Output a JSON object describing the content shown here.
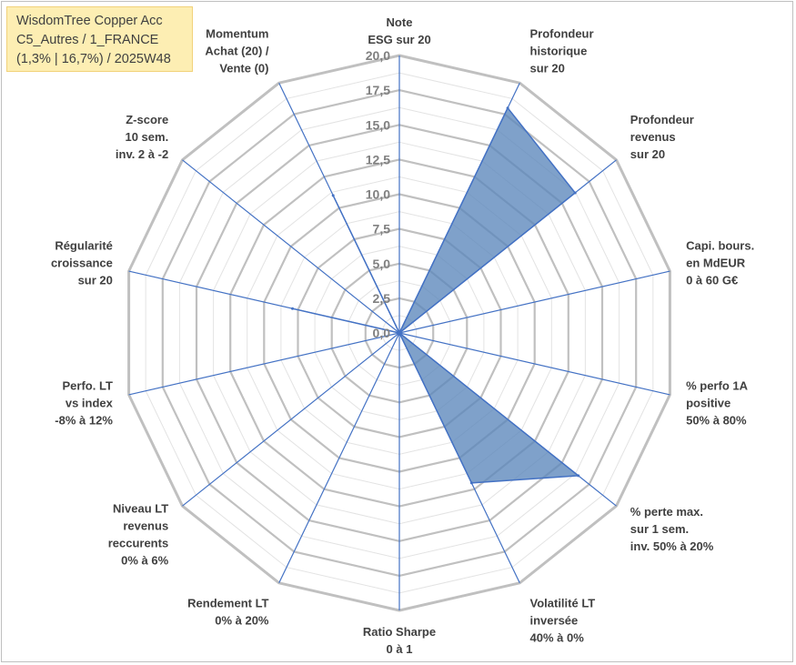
{
  "title_box": {
    "line1": "WisdomTree Copper Acc",
    "line2": "C5_Autres / 1_FRANCE",
    "line3": "(1,3% | 16,7%) / 2025W48"
  },
  "colors": {
    "series_fill": "#5b87bb",
    "series_stroke": "#4472c4",
    "spoke": "#4472c4",
    "grid_major": "#c0c0c0",
    "grid_minor": "#e3e3e3",
    "title_bg": "#fdeeb3"
  },
  "chart_data": {
    "type": "radar",
    "r_min": 0,
    "r_max": 20,
    "ticks": [
      "0,0",
      "2,5",
      "5,0",
      "7,5",
      "10,0",
      "12,5",
      "15,0",
      "17,5",
      "20,0"
    ],
    "tick_values": [
      0,
      2.5,
      5,
      7.5,
      10,
      12.5,
      15,
      17.5,
      20
    ],
    "grid": true,
    "axes": [
      [
        "Note",
        "ESG sur 20"
      ],
      [
        "Profondeur",
        "historique",
        "sur 20"
      ],
      [
        "Profondeur",
        "revenus",
        "sur 20"
      ],
      [
        "Capi. bours.",
        "en MdEUR",
        "0 à 60 G€"
      ],
      [
        "% perfo 1A",
        "positive",
        "50% à 80%"
      ],
      [
        "% perte max.",
        "sur 1 sem.",
        "inv. 50% à 20%"
      ],
      [
        "Volatilité LT",
        "inversée",
        "40% à 0%"
      ],
      [
        "Ratio Sharpe",
        "0 à 1"
      ],
      [
        "Rendement LT",
        "0% à 20%"
      ],
      [
        "Niveau LT",
        "revenus",
        "reccurents",
        "0% à 6%"
      ],
      [
        "Perfo. LT",
        "vs index",
        "-8% à 12%"
      ],
      [
        "Régularité",
        "croissance",
        "sur 20"
      ],
      [
        "Z-score",
        "10 sem.",
        "inv. 2 à -2"
      ],
      [
        "Momentum",
        "Achat (20) /",
        "Vente (0)"
      ]
    ],
    "series": [
      {
        "values": [
          0,
          18,
          16.2,
          0,
          0,
          16.5,
          12,
          0,
          0,
          0,
          0,
          7.9,
          0,
          11
        ]
      }
    ]
  }
}
